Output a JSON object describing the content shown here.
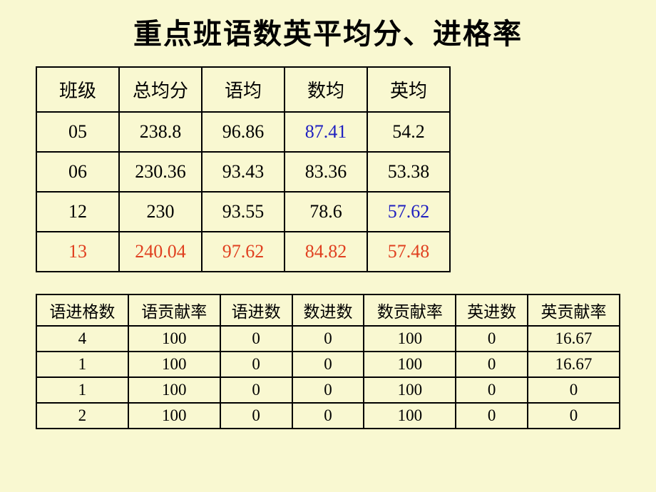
{
  "title": "重点班语数英平均分、进格率",
  "table1": {
    "columns": [
      "班级",
      "总均分",
      "语均",
      "数均",
      "英均"
    ],
    "rows": [
      {
        "cells": [
          "05",
          "238.8",
          "96.86",
          "87.41",
          "54.2"
        ],
        "styles": [
          "",
          "",
          "",
          "blue-text",
          ""
        ]
      },
      {
        "cells": [
          "06",
          "230.36",
          "93.43",
          "83.36",
          "53.38"
        ],
        "styles": [
          "",
          "",
          "",
          "",
          ""
        ]
      },
      {
        "cells": [
          "12",
          "230",
          "93.55",
          "78.6",
          "57.62"
        ],
        "styles": [
          "",
          "",
          "",
          "",
          "blue-text"
        ]
      },
      {
        "cells": [
          "13",
          "240.04",
          "97.62",
          "84.82",
          "57.48"
        ],
        "styles": [
          "red-text",
          "red-text",
          "red-text",
          "red-text",
          "red-text"
        ]
      }
    ]
  },
  "table2": {
    "columns": [
      "语进格数",
      "语贡献率",
      "语进数",
      "数进数",
      "数贡献率",
      "英进数",
      "英贡献率"
    ],
    "rows": [
      [
        "4",
        "100",
        "0",
        "0",
        "100",
        "0",
        "16.67"
      ],
      [
        "1",
        "100",
        "0",
        "0",
        "100",
        "0",
        "16.67"
      ],
      [
        "1",
        "100",
        "0",
        "0",
        "100",
        "0",
        "0"
      ],
      [
        "2",
        "100",
        "0",
        "0",
        "100",
        "0",
        "0"
      ]
    ],
    "last_col_align": [
      "align-right",
      "align-right",
      "",
      ""
    ]
  },
  "colors": {
    "background": "#f9f8d1",
    "text": "#000000",
    "blue": "#2020c0",
    "red": "#e04020",
    "border": "#000000"
  }
}
